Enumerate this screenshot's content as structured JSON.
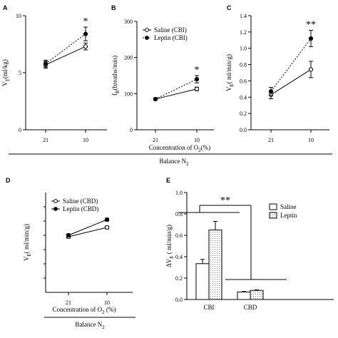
{
  "chart_data": [
    {
      "panel": "A",
      "type": "line",
      "ylabel": "VT(ml/kg)",
      "ylabel_main": "V",
      "ylabel_sub": "T",
      "ylabel_unit": "(ml/kg)",
      "categories": [
        "21",
        "10"
      ],
      "ylim": [
        0,
        10
      ],
      "yticks": [
        "0",
        "5",
        "10"
      ],
      "series": [
        {
          "values": [
            5.7,
            7.3
          ],
          "err": [
            0.3,
            0.3
          ],
          "marker": "open",
          "dash": "solid"
        },
        {
          "values": [
            5.8,
            8.4
          ],
          "err": [
            0.3,
            0.6
          ],
          "marker": "filled",
          "dash": "dotted"
        }
      ],
      "annotation": "*"
    },
    {
      "panel": "B",
      "type": "line",
      "ylabel": "fR(breaths/min)",
      "ylabel_main": "f",
      "ylabel_sub": "R",
      "ylabel_unit": "(breaths/min)",
      "categories": [
        "21",
        "10"
      ],
      "ylim": [
        0,
        300
      ],
      "yticks": [
        "0",
        "100",
        "200",
        "300"
      ],
      "series": [
        {
          "name": "Saline (CBI)",
          "values": [
            85,
            113
          ],
          "err": [
            3,
            5
          ],
          "marker": "open",
          "dash": "solid"
        },
        {
          "name": "Leptin (CBI)",
          "values": [
            85,
            140
          ],
          "err": [
            3,
            10
          ],
          "marker": "filled",
          "dash": "dotted"
        }
      ],
      "annotation": "*"
    },
    {
      "panel": "C",
      "type": "line",
      "ylabel": "VE ( ml/min/g)",
      "ylabel_main": "V",
      "ylabel_sub": "E",
      "ylabel_unit": "( ml/min/g)",
      "categories": [
        "21",
        "10"
      ],
      "ylim": [
        0,
        1.4
      ],
      "yticks": [
        "0.0",
        "0.2",
        "0.4",
        "0.6",
        "0.8",
        "1.0",
        "1.2",
        "1.4"
      ],
      "series": [
        {
          "values": [
            0.43,
            0.74
          ],
          "err": [
            0.05,
            0.1
          ],
          "marker": "open",
          "dash": "solid"
        },
        {
          "values": [
            0.47,
            1.12
          ],
          "err": [
            0.05,
            0.1
          ],
          "marker": "filled",
          "dash": "dotted"
        }
      ],
      "annotation": "**"
    },
    {
      "panel": "D",
      "type": "line",
      "ylabel": "VE ( ml/min/g)",
      "ylabel_main": "V",
      "ylabel_sub": "E",
      "ylabel_unit": "( ml/min/g)",
      "categories": [
        "21",
        "10"
      ],
      "ylim": [
        0,
        0.7
      ],
      "yticks": [],
      "series": [
        {
          "name": "Saline (CBD)",
          "values": [
            0.39,
            0.455
          ],
          "err": [
            0.01,
            0.01
          ],
          "marker": "open",
          "dash": "solid"
        },
        {
          "name": "Leptin (CBD)",
          "values": [
            0.4,
            0.51
          ],
          "err": [
            0.01,
            0.01
          ],
          "marker": "filled",
          "dash": "solid"
        }
      ]
    },
    {
      "panel": "E",
      "type": "bar",
      "ylabel": "ΔVE ( ml/min/g)",
      "ylabel_main": "ΔV",
      "ylabel_sub": "E",
      "ylabel_unit": " ( ml/min/g)",
      "categories": [
        "CBI",
        "CBD"
      ],
      "ylim": [
        0,
        1.0
      ],
      "yticks": [
        "0.0",
        "0.2",
        "0.4",
        "0.6",
        "0.8",
        "1.0"
      ],
      "series": [
        {
          "name": "Saline",
          "values": [
            0.335,
            0.07
          ],
          "err": [
            0.04,
            0.005
          ],
          "fill": "white"
        },
        {
          "name": "Leptin",
          "values": [
            0.65,
            0.085
          ],
          "err": [
            0.08,
            0.005
          ],
          "fill": "dotted"
        }
      ],
      "annotation": "**"
    }
  ],
  "shared": {
    "xlabel_top": "Concentration of O2(%)",
    "xlabel_top_main": "Concentration of O",
    "xlabel_top_sub": "2",
    "xlabel_top_unit": "(%)",
    "xlabel_d_main": "Concentration of O",
    "xlabel_d_sub": "2",
    "xlabel_d_unit": " (%)",
    "balance_main": "Balance N",
    "balance_sub": "2"
  }
}
